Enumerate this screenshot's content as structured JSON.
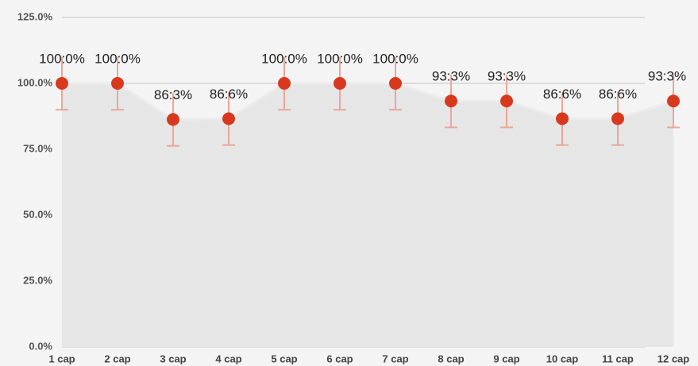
{
  "chart_data": {
    "type": "line",
    "categories": [
      "1 cap",
      "2 cap",
      "3 cap",
      "4 cap",
      "5 cap",
      "6 cap",
      "7 cap",
      "8 cap",
      "9 cap",
      "10 cap",
      "11 cap",
      "12 cap"
    ],
    "series": [
      {
        "color": "#d8391e",
        "values": [
          100,
          100,
          86.3,
          86.6,
          100,
          100,
          100,
          93.3,
          93.3,
          86.6,
          86.6,
          93.3
        ],
        "value_labels": [
          "100:0%",
          "100:0%",
          "86:3%",
          "86:6%",
          "100:0%",
          "100:0%",
          "100:0%",
          "93:3%",
          "93:3%",
          "86:6%",
          "86:6%",
          "93:3%"
        ],
        "errors": [
          10,
          10,
          10,
          10,
          10,
          10,
          10,
          10,
          10,
          10,
          10,
          10
        ]
      }
    ],
    "ylim": [
      0,
      125
    ],
    "yticks": [
      {
        "value": 0,
        "label": "0.0%"
      },
      {
        "value": 25,
        "label": "25.0%"
      },
      {
        "value": 50,
        "label": "50.0%"
      },
      {
        "value": 75,
        "label": "75.0%"
      },
      {
        "value": 100,
        "label": "100.0%"
      },
      {
        "value": 125,
        "label": "125.0%"
      }
    ],
    "grid": true
  }
}
